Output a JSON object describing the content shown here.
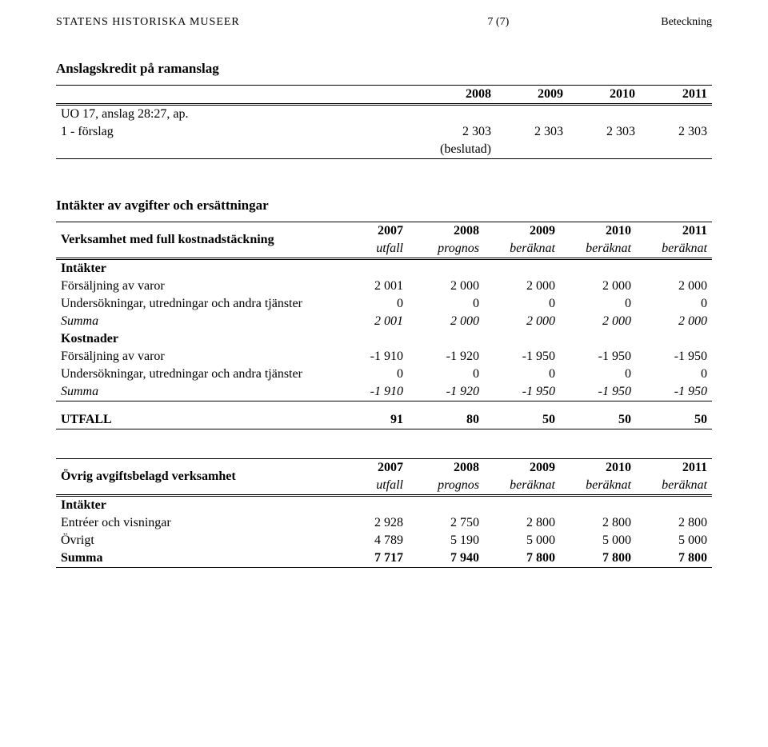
{
  "header": {
    "org": "STATENS HISTORISKA MUSEER",
    "page_num": "7 (7)",
    "label_right": "Beteckning"
  },
  "section1": {
    "title": "Anslagskredit på ramanslag",
    "years": [
      "2008",
      "2009",
      "2010",
      "2011"
    ],
    "row_label_line1": "UO 17, anslag 28:27, ap.",
    "row_label_line2": "1 - förslag",
    "beslutad_line1": "2 303",
    "beslutad_line2": "(beslutad)",
    "vals": [
      "2 303",
      "2 303",
      "2 303"
    ]
  },
  "section2": {
    "title": "Intäkter av avgifter och ersättningar",
    "table1": {
      "heading": "Verksamhet med full kostnadstäckning",
      "years": [
        "2007",
        "2008",
        "2009",
        "2010",
        "2011"
      ],
      "subhead": [
        "utfall",
        "prognos",
        "beräknat",
        "beräknat",
        "beräknat"
      ],
      "group1_label": "Intäkter",
      "rows1": [
        {
          "label": "Försäljning av varor",
          "vals": [
            "2 001",
            "2 000",
            "2 000",
            "2 000",
            "2 000"
          ]
        },
        {
          "label": "Undersökningar, utredningar och andra tjänster",
          "vals": [
            "0",
            "0",
            "0",
            "0",
            "0"
          ]
        }
      ],
      "summa1": {
        "label": "Summa",
        "vals": [
          "2 001",
          "2 000",
          "2 000",
          "2 000",
          "2 000"
        ]
      },
      "group2_label": "Kostnader",
      "rows2": [
        {
          "label": "Försäljning av varor",
          "vals": [
            "-1 910",
            "-1 920",
            "-1 950",
            "-1 950",
            "-1 950"
          ]
        },
        {
          "label": "Undersökningar, utredningar och andra tjänster",
          "vals": [
            "0",
            "0",
            "0",
            "0",
            "0"
          ]
        }
      ],
      "summa2": {
        "label": "Summa",
        "vals": [
          "-1 910",
          "-1 920",
          "-1 950",
          "-1 950",
          "-1 950"
        ]
      },
      "utfall": {
        "label": "UTFALL",
        "vals": [
          "91",
          "80",
          "50",
          "50",
          "50"
        ]
      }
    },
    "table2": {
      "heading": "Övrig avgiftsbelagd verksamhet",
      "years": [
        "2007",
        "2008",
        "2009",
        "2010",
        "2011"
      ],
      "subhead": [
        "utfall",
        "prognos",
        "beräknat",
        "beräknat",
        "beräknat"
      ],
      "group_label": "Intäkter",
      "rows": [
        {
          "label": "Entréer och visningar",
          "vals": [
            "2 928",
            "2 750",
            "2 800",
            "2 800",
            "2 800"
          ]
        },
        {
          "label": "Övrigt",
          "vals": [
            "4 789",
            "5 190",
            "5 000",
            "5 000",
            "5 000"
          ]
        }
      ],
      "summa": {
        "label": "Summa",
        "vals": [
          "7 717",
          "7 940",
          "7 800",
          "7 800",
          "7 800"
        ]
      }
    }
  }
}
